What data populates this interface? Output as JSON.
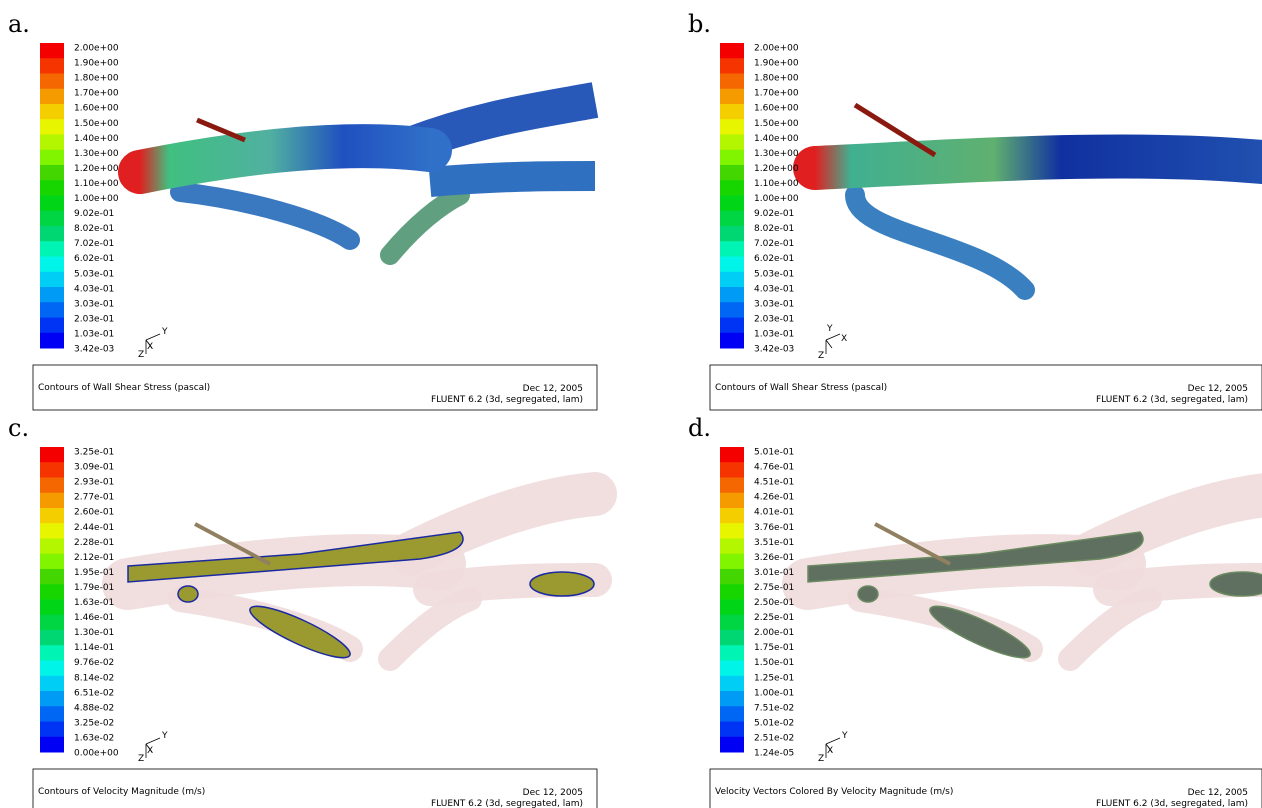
{
  "panels": [
    {
      "label": "a.",
      "colorbar": [
        "2.00e+00",
        "1.90e+00",
        "1.80e+00",
        "1.70e+00",
        "1.60e+00",
        "1.50e+00",
        "1.40e+00",
        "1.30e+00",
        "1.20e+00",
        "1.10e+00",
        "1.00e+00",
        "9.02e-01",
        "8.02e-01",
        "7.02e-01",
        "6.02e-01",
        "5.03e-01",
        "4.03e-01",
        "3.03e-01",
        "2.03e-01",
        "1.03e-01",
        "3.42e-03"
      ],
      "axes": [
        "Y",
        "X",
        "Z"
      ],
      "caption": "Contours of Wall Shear Stress (pascal)",
      "date": "Dec 12, 2005",
      "software": "FLUENT 6.2 (3d, segregated, lam)"
    },
    {
      "label": "b.",
      "colorbar": [
        "2.00e+00",
        "1.90e+00",
        "1.80e+00",
        "1.70e+00",
        "1.60e+00",
        "1.50e+00",
        "1.40e+00",
        "1.30e+00",
        "1.20e+00",
        "1.10e+00",
        "1.00e+00",
        "9.02e-01",
        "8.02e-01",
        "7.02e-01",
        "6.02e-01",
        "5.03e-01",
        "4.03e-01",
        "3.03e-01",
        "2.03e-01",
        "1.03e-01",
        "3.42e-03"
      ],
      "axes": [
        "X",
        "Y",
        "Z"
      ],
      "caption": "Contours of Wall Shear Stress (pascal)",
      "date": "Dec 12, 2005",
      "software": "FLUENT 6.2 (3d, segregated, lam)"
    },
    {
      "label": "c.",
      "colorbar": [
        "3.25e-01",
        "3.09e-01",
        "2.93e-01",
        "2.77e-01",
        "2.60e-01",
        "2.44e-01",
        "2.28e-01",
        "2.12e-01",
        "1.95e-01",
        "1.79e-01",
        "1.63e-01",
        "1.46e-01",
        "1.30e-01",
        "1.14e-01",
        "9.76e-02",
        "8.14e-02",
        "6.51e-02",
        "4.88e-02",
        "3.25e-02",
        "1.63e-02",
        "0.00e+00"
      ],
      "axes": [
        "Y",
        "X",
        "Z"
      ],
      "caption": "Contours of Velocity Magnitude (m/s)",
      "date": "Dec 12, 2005",
      "software": "FLUENT 6.2 (3d, segregated, lam)"
    },
    {
      "label": "d.",
      "colorbar": [
        "5.01e-01",
        "4.76e-01",
        "4.51e-01",
        "4.26e-01",
        "4.01e-01",
        "3.76e-01",
        "3.51e-01",
        "3.26e-01",
        "3.01e-01",
        "2.75e-01",
        "2.50e-01",
        "2.25e-01",
        "2.00e-01",
        "1.75e-01",
        "1.50e-01",
        "1.25e-01",
        "1.00e-01",
        "7.51e-02",
        "5.01e-02",
        "2.51e-02",
        "1.24e-05"
      ],
      "axes": [
        "Y",
        "X",
        "Z"
      ],
      "caption": "Velocity Vectors Colored By Velocity Magnitude (m/s)",
      "date": "Dec 12, 2005",
      "software": "FLUENT 6.2 (3d, segregated, lam)"
    }
  ]
}
